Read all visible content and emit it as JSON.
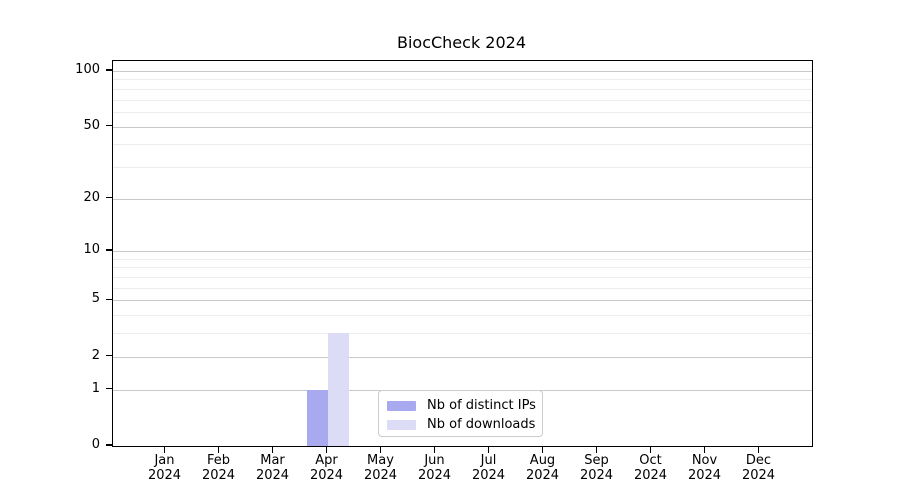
{
  "chart_data": {
    "type": "bar",
    "title": "BiocCheck 2024",
    "x": {
      "months": [
        "Jan",
        "Feb",
        "Mar",
        "Apr",
        "May",
        "Jun",
        "Jul",
        "Aug",
        "Sep",
        "Oct",
        "Nov",
        "Dec"
      ],
      "year_label": "2024"
    },
    "categories": [
      "Jan 2024",
      "Feb 2024",
      "Mar 2024",
      "Apr 2024",
      "May 2024",
      "Jun 2024",
      "Jul 2024",
      "Aug 2024",
      "Sep 2024",
      "Oct 2024",
      "Nov 2024",
      "Dec 2024"
    ],
    "series": [
      {
        "name": "Nb of distinct IPs",
        "color": "#a9a9ef",
        "values": [
          0,
          0,
          0,
          1,
          0,
          0,
          0,
          0,
          0,
          0,
          0,
          0
        ]
      },
      {
        "name": "Nb of downloads",
        "color": "#dcdcf7",
        "values": [
          0,
          0,
          0,
          3,
          0,
          0,
          0,
          0,
          0,
          0,
          0,
          0
        ]
      }
    ],
    "y_axis": {
      "scale": "log1p",
      "ticks": [
        100,
        50,
        20,
        10,
        5,
        2,
        1,
        0
      ],
      "minor_gridlines": [
        3,
        4,
        6,
        7,
        8,
        9,
        30,
        40,
        60,
        70,
        80,
        90
      ],
      "ylim": [
        0,
        100
      ]
    },
    "grid": {
      "major_color": "#c9c9c9",
      "minor_color": "#ececec"
    },
    "legend": {
      "position": "bottom-center",
      "items": [
        "Nb of distinct IPs",
        "Nb of downloads"
      ]
    },
    "frame_color": "#000000"
  }
}
